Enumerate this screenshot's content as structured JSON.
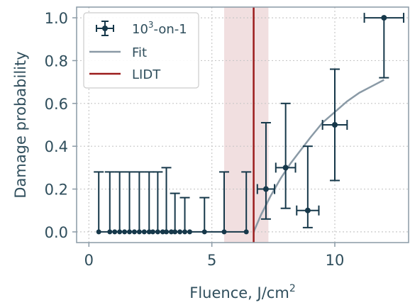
{
  "chart_data": {
    "type": "scatter",
    "xlabel": "Fluence, J/cm",
    "xlabel_sup": "2",
    "ylabel": "Damage probability",
    "xlim": [
      -0.5,
      13
    ],
    "ylim": [
      -0.05,
      1.05
    ],
    "xticks": [
      "0",
      "5",
      "10"
    ],
    "xtick_values": [
      0,
      5,
      10
    ],
    "yticks": [
      "0.0",
      "0.2",
      "0.4",
      "0.6",
      "0.8",
      "1.0"
    ],
    "ytick_values": [
      0,
      0.2,
      0.4,
      0.6,
      0.8,
      1.0
    ],
    "grid": true,
    "legend_position": "top-left",
    "colors": {
      "points": "#16384a",
      "fit": "#8a9aa6",
      "lidt": "#9b1c1c",
      "band": "#f1dfe0",
      "axis": "#8a9aa6",
      "grid": "#c8c8c8"
    },
    "legend": [
      {
        "name": "10",
        "sup": "3",
        "suffix": "-on-1",
        "kind": "errorbar"
      },
      {
        "name": "Fit",
        "kind": "line"
      },
      {
        "name": "LIDT",
        "kind": "vline"
      }
    ],
    "series": [
      {
        "kind": "errorbar",
        "points": [
          {
            "x": 0.4,
            "y": 0,
            "yerr_low": 0,
            "yerr_high": 0.28,
            "xerr": 0
          },
          {
            "x": 0.85,
            "y": 0,
            "yerr_low": 0,
            "yerr_high": 0.28,
            "xerr": 0
          },
          {
            "x": 1.25,
            "y": 0,
            "yerr_low": 0,
            "yerr_high": 0.28,
            "xerr": 0
          },
          {
            "x": 1.65,
            "y": 0,
            "yerr_low": 0,
            "yerr_high": 0.28,
            "xerr": 0
          },
          {
            "x": 2.05,
            "y": 0,
            "yerr_low": 0,
            "yerr_high": 0.28,
            "xerr": 0
          },
          {
            "x": 2.45,
            "y": 0,
            "yerr_low": 0,
            "yerr_high": 0.28,
            "xerr": 0
          },
          {
            "x": 2.8,
            "y": 0,
            "yerr_low": 0,
            "yerr_high": 0.28,
            "xerr": 0
          },
          {
            "x": 3.15,
            "y": 0,
            "yerr_low": 0,
            "yerr_high": 0.3,
            "xerr": 0
          },
          {
            "x": 3.5,
            "y": 0,
            "yerr_low": 0,
            "yerr_high": 0.18,
            "xerr": 0
          },
          {
            "x": 3.9,
            "y": 0,
            "yerr_low": 0,
            "yerr_high": 0.16,
            "xerr": 0
          },
          {
            "x": 4.7,
            "y": 0,
            "yerr_low": 0,
            "yerr_high": 0.16,
            "xerr": 0
          },
          {
            "x": 5.5,
            "y": 0,
            "yerr_low": 0,
            "yerr_high": 0.28,
            "xerr": 0
          },
          {
            "x": 6.4,
            "y": 0,
            "yerr_low": 0,
            "yerr_high": 0.28,
            "xerr": 0
          },
          {
            "x": 7.2,
            "y": 0.2,
            "yerr_low": 0.14,
            "yerr_high": 0.31,
            "xerr": 0.35
          },
          {
            "x": 8.0,
            "y": 0.3,
            "yerr_low": 0.19,
            "yerr_high": 0.3,
            "xerr": 0.4
          },
          {
            "x": 8.9,
            "y": 0.1,
            "yerr_low": 0.08,
            "yerr_high": 0.3,
            "xerr": 0.45
          },
          {
            "x": 10.0,
            "y": 0.5,
            "yerr_low": 0.26,
            "yerr_high": 0.26,
            "xerr": 0.5
          },
          {
            "x": 12.0,
            "y": 1.0,
            "yerr_low": 0.28,
            "yerr_high": 0,
            "xerr": 0.8
          }
        ],
        "markers": [
          0.4,
          0.85,
          1.25,
          1.65,
          2.05,
          2.45,
          2.8,
          3.15,
          3.5,
          3.9,
          4.7,
          5.5,
          6.4,
          1.05,
          1.45,
          1.85,
          2.25,
          2.6,
          3.0,
          3.35,
          3.7,
          4.1
        ]
      },
      {
        "kind": "fit",
        "x": [
          6.7,
          7.0,
          7.4,
          7.8,
          8.2,
          8.6,
          9.0,
          9.5,
          10.0,
          10.5,
          11.0,
          11.5,
          12.0
        ],
        "y": [
          0.0,
          0.08,
          0.17,
          0.25,
          0.32,
          0.38,
          0.44,
          0.51,
          0.56,
          0.61,
          0.65,
          0.68,
          0.71
        ]
      }
    ],
    "lidt": {
      "x": 6.7,
      "band": [
        5.5,
        7.3
      ]
    }
  }
}
